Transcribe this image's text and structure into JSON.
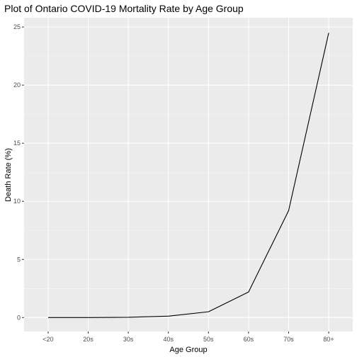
{
  "chart_data": {
    "type": "line",
    "title": "Plot of Ontario COVID-19 Mortality Rate by Age Group",
    "xlabel": "Age Group",
    "ylabel": "Death Rate (%)",
    "categories": [
      "<20",
      "20s",
      "30s",
      "40s",
      "50s",
      "60s",
      "70s",
      "80+"
    ],
    "series": [
      {
        "values": [
          0.0,
          0.0,
          0.02,
          0.12,
          0.5,
          2.2,
          9.2,
          24.5
        ]
      }
    ],
    "ylim": [
      -1.2,
      25.8
    ],
    "yticks": [
      0,
      5,
      10,
      15,
      20,
      25
    ],
    "grid": true,
    "legend": "none",
    "colors": {
      "panel": "#ebebeb",
      "grid_major": "#ffffff",
      "grid_minor": "#f5f5f5",
      "line": "#000000",
      "tick": "#333333",
      "tick_label": "#4d4d4d"
    }
  }
}
